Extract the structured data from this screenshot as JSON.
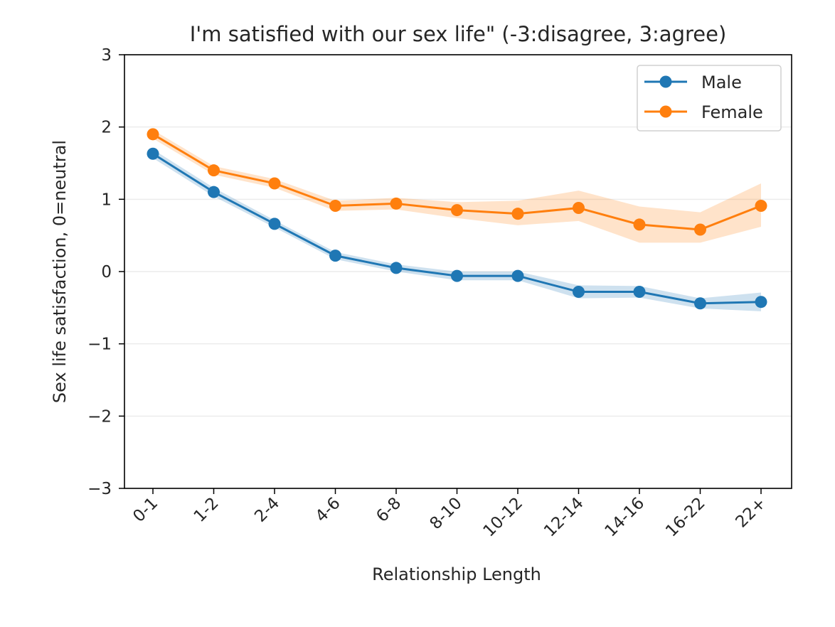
{
  "chart_data": {
    "type": "line",
    "title": "I'm satisfied with our sex life\" (-3:disagree, 3:agree)",
    "xlabel": "Relationship Length",
    "ylabel": "Sex life satisfaction, 0=neutral",
    "ylim": [
      -3,
      3
    ],
    "yticks": [
      "−3",
      "−2",
      "−1",
      "0",
      "1",
      "2",
      "3"
    ],
    "yticks_values": [
      -3,
      -2,
      -1,
      0,
      1,
      2,
      3
    ],
    "grid": true,
    "legend_position": "top-right",
    "categories": [
      "0-1",
      "1-2",
      "2-4",
      "4-6",
      "6-8",
      "8-10",
      "10-12",
      "12-14",
      "14-16",
      "16-22",
      "22+"
    ],
    "series": [
      {
        "name": "Male",
        "color": "#1f77b4",
        "values": [
          1.63,
          1.1,
          0.66,
          0.22,
          0.05,
          -0.06,
          -0.06,
          -0.28,
          -0.28,
          -0.44,
          -0.42
        ],
        "ci_low": [
          1.57,
          1.04,
          0.61,
          0.17,
          0.0,
          -0.12,
          -0.12,
          -0.37,
          -0.36,
          -0.51,
          -0.55
        ],
        "ci_high": [
          1.69,
          1.16,
          0.71,
          0.27,
          0.1,
          0.0,
          0.0,
          -0.19,
          -0.2,
          -0.37,
          -0.29
        ]
      },
      {
        "name": "Female",
        "color": "#ff7f0e",
        "values": [
          1.9,
          1.4,
          1.22,
          0.91,
          0.94,
          0.85,
          0.8,
          0.88,
          0.65,
          0.58,
          0.91
        ],
        "ci_low": [
          1.84,
          1.34,
          1.16,
          0.84,
          0.86,
          0.74,
          0.64,
          0.7,
          0.4,
          0.4,
          0.62
        ],
        "ci_high": [
          1.96,
          1.46,
          1.28,
          0.98,
          1.02,
          0.96,
          0.98,
          1.12,
          0.9,
          0.82,
          1.22
        ]
      }
    ]
  }
}
